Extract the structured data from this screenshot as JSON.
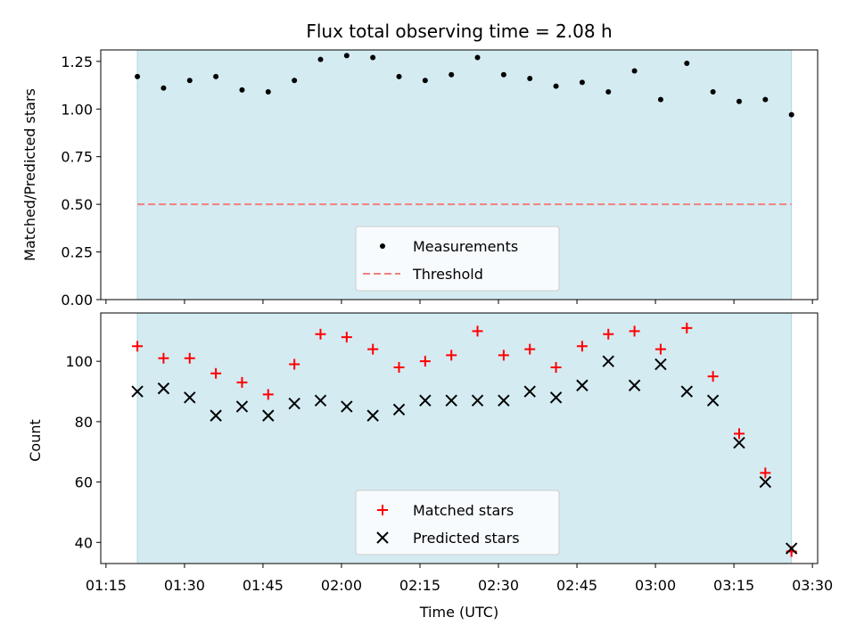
{
  "chart_data": [
    {
      "type": "scatter",
      "title": "Flux total observing time = 2.08 h",
      "xlabel": "",
      "ylabel": "Matched/Predicted stars",
      "ylim": [
        0.0,
        1.31
      ],
      "y_ticks": [
        "0.00",
        "0.25",
        "0.50",
        "0.75",
        "1.00",
        "1.25"
      ],
      "y_tick_values": [
        0.0,
        0.25,
        0.5,
        0.75,
        1.0,
        1.25
      ],
      "x_range": [
        "01:14",
        "03:31"
      ],
      "x_ticks": [
        "01:15",
        "01:30",
        "01:45",
        "02:00",
        "02:15",
        "02:30",
        "02:45",
        "03:00",
        "03:15",
        "03:30"
      ],
      "x_tick_labels_visible": false,
      "shaded_span": [
        "01:21",
        "03:26"
      ],
      "shaded_color": "#add8e6",
      "grid": false,
      "legend_position": "lower center",
      "series": [
        {
          "name": "Measurements",
          "marker": "dot",
          "color": "#000000",
          "x": [
            "01:21",
            "01:26",
            "01:31",
            "01:36",
            "01:41",
            "01:46",
            "01:51",
            "01:56",
            "02:01",
            "02:06",
            "02:11",
            "02:16",
            "02:21",
            "02:26",
            "02:31",
            "02:36",
            "02:41",
            "02:46",
            "02:51",
            "02:56",
            "03:01",
            "03:06",
            "03:11",
            "03:16",
            "03:21",
            "03:26"
          ],
          "y": [
            1.17,
            1.11,
            1.15,
            1.17,
            1.1,
            1.09,
            1.15,
            1.26,
            1.28,
            1.27,
            1.17,
            1.15,
            1.18,
            1.27,
            1.18,
            1.16,
            1.12,
            1.14,
            1.09,
            1.2,
            1.05,
            1.24,
            1.09,
            1.04,
            1.05,
            0.97
          ]
        },
        {
          "name": "Threshold",
          "marker": "dashed-line",
          "color": "#f08080",
          "x": [
            "01:21",
            "03:26"
          ],
          "y": [
            0.5,
            0.5
          ]
        }
      ]
    },
    {
      "type": "scatter",
      "title": "",
      "xlabel": "Time (UTC)",
      "ylabel": "Count",
      "ylim": [
        33,
        116
      ],
      "y_ticks": [
        "40",
        "60",
        "80",
        "100"
      ],
      "y_tick_values": [
        40,
        60,
        80,
        100
      ],
      "x_range": [
        "01:14",
        "03:31"
      ],
      "x_ticks": [
        "01:15",
        "01:30",
        "01:45",
        "02:00",
        "02:15",
        "02:30",
        "02:45",
        "03:00",
        "03:15",
        "03:30"
      ],
      "x_tick_labels_visible": true,
      "shaded_span": [
        "01:21",
        "03:26"
      ],
      "shaded_color": "#add8e6",
      "grid": false,
      "legend_position": "lower center",
      "series": [
        {
          "name": "Matched stars",
          "marker": "plus",
          "color": "#ff0000",
          "x": [
            "01:21",
            "01:26",
            "01:31",
            "01:36",
            "01:41",
            "01:46",
            "01:51",
            "01:56",
            "02:01",
            "02:06",
            "02:11",
            "02:16",
            "02:21",
            "02:26",
            "02:31",
            "02:36",
            "02:41",
            "02:46",
            "02:51",
            "02:56",
            "03:01",
            "03:06",
            "03:11",
            "03:16",
            "03:21",
            "03:26"
          ],
          "y": [
            105,
            101,
            101,
            96,
            93,
            89,
            99,
            109,
            108,
            104,
            98,
            100,
            102,
            110,
            102,
            104,
            98,
            105,
            109,
            110,
            104,
            111,
            95,
            76,
            63,
            37
          ]
        },
        {
          "name": "Predicted stars",
          "marker": "x",
          "color": "#000000",
          "x": [
            "01:21",
            "01:26",
            "01:31",
            "01:36",
            "01:41",
            "01:46",
            "01:51",
            "01:56",
            "02:01",
            "02:06",
            "02:11",
            "02:16",
            "02:21",
            "02:26",
            "02:31",
            "02:36",
            "02:41",
            "02:46",
            "02:51",
            "02:56",
            "03:01",
            "03:06",
            "03:11",
            "03:16",
            "03:21",
            "03:26"
          ],
          "y": [
            90,
            91,
            88,
            82,
            85,
            82,
            86,
            87,
            85,
            82,
            84,
            87,
            87,
            87,
            87,
            90,
            88,
            92,
            100,
            92,
            99,
            90,
            87,
            73,
            60,
            38
          ]
        }
      ]
    }
  ]
}
